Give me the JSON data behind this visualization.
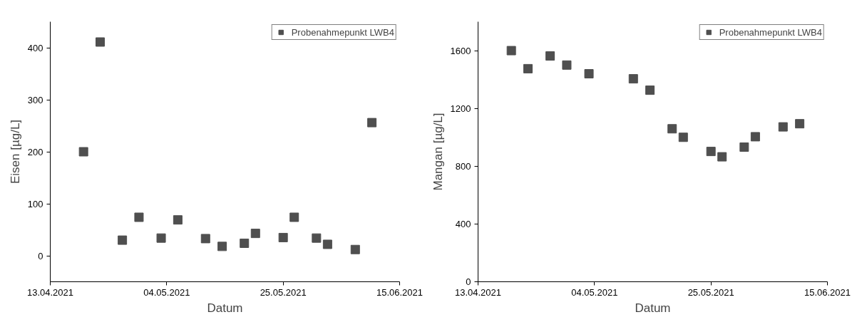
{
  "chart_data": [
    {
      "type": "scatter",
      "xlabel": "Datum",
      "ylabel": "Eisen [µg/L]",
      "x": [
        "2021-04-19",
        "2021-04-22",
        "2021-04-26",
        "2021-04-29",
        "2021-05-03",
        "2021-05-06",
        "2021-05-11",
        "2021-05-14",
        "2021-05-18",
        "2021-05-20",
        "2021-05-25",
        "2021-05-27",
        "2021-05-31",
        "2021-06-02",
        "2021-06-07",
        "2021-06-10"
      ],
      "series": [
        {
          "name": "Probenahmepunkt LWB4",
          "color": "#4f4f4f",
          "values": [
            200,
            411,
            30,
            74,
            34,
            69,
            33,
            18,
            24,
            43,
            35,
            74,
            34,
            22,
            12,
            256
          ]
        }
      ],
      "xlim": [
        "2021-04-13",
        "2021-06-15"
      ],
      "xticks": [
        {
          "value": "2021-04-13",
          "label": "13.04.2021"
        },
        {
          "value": "2021-05-04",
          "label": "04.05.2021"
        },
        {
          "value": "2021-05-25",
          "label": "25.05.2021"
        },
        {
          "value": "2021-06-15",
          "label": "15.06.2021"
        }
      ],
      "ylim": [
        -50,
        450
      ],
      "yticks": [
        0,
        100,
        200,
        300,
        400
      ],
      "marker": "square",
      "legend": "top right",
      "grid": false
    },
    {
      "type": "scatter",
      "xlabel": "Datum",
      "ylabel": "Mangan [µg/L]",
      "x": [
        "2021-04-19",
        "2021-04-22",
        "2021-04-26",
        "2021-04-29",
        "2021-05-03",
        "2021-05-11",
        "2021-05-14",
        "2021-05-18",
        "2021-05-20",
        "2021-05-25",
        "2021-05-27",
        "2021-05-31",
        "2021-06-02",
        "2021-06-07",
        "2021-06-10"
      ],
      "series": [
        {
          "name": "Probenahmepunkt LWB4",
          "color": "#4f4f4f",
          "values": [
            1600,
            1475,
            1563,
            1500,
            1440,
            1405,
            1326,
            1059,
            1000,
            902,
            865,
            932,
            1004,
            1072,
            1094
          ]
        }
      ],
      "xlim": [
        "2021-04-13",
        "2021-06-15"
      ],
      "xticks": [
        {
          "value": "2021-04-13",
          "label": "13.04.2021"
        },
        {
          "value": "2021-05-04",
          "label": "04.05.2021"
        },
        {
          "value": "2021-05-25",
          "label": "25.05.2021"
        },
        {
          "value": "2021-06-15",
          "label": "15.06.2021"
        }
      ],
      "ylim": [
        0,
        1800
      ],
      "yticks": [
        0,
        400,
        800,
        1200,
        1600
      ],
      "marker": "square",
      "legend": "top right",
      "grid": false
    }
  ]
}
